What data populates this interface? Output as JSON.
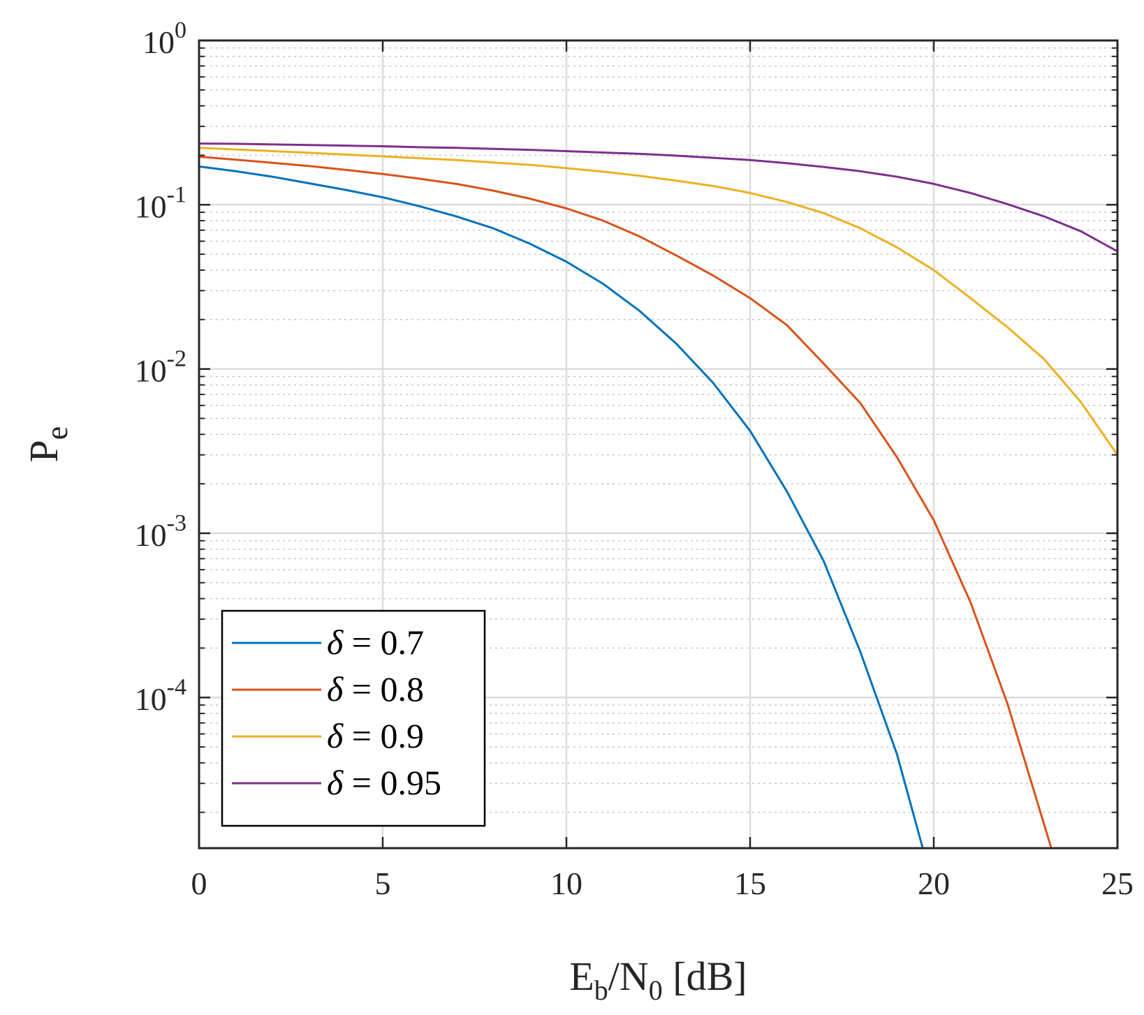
{
  "chart_data": {
    "type": "line",
    "title": "",
    "xlabel": {
      "main": "E",
      "sub1": "b",
      "mid": "/N",
      "sub2": "0",
      "tail": " [dB]"
    },
    "ylabel": {
      "main": "P",
      "sub": "e"
    },
    "xlim": [
      0,
      25
    ],
    "ylim": [
      1.21e-05,
      1
    ],
    "yscale": "log",
    "grid": true,
    "minor_grid": true,
    "legend_position": "bottom-left",
    "x_ticks": [
      "0",
      "5",
      "10",
      "15",
      "20",
      "25"
    ],
    "y_ticks": [
      {
        "base": "10",
        "exp": "0",
        "value": 1
      },
      {
        "base": "10",
        "exp": "-1",
        "value": 0.1
      },
      {
        "base": "10",
        "exp": "-2",
        "value": 0.01
      },
      {
        "base": "10",
        "exp": "-3",
        "value": 0.001
      },
      {
        "base": "10",
        "exp": "-4",
        "value": 0.0001
      }
    ],
    "series": [
      {
        "name": "δ = 0.7",
        "name_symbol": "δ",
        "name_value": " = 0.7",
        "color": "#0072BD",
        "x": [
          0,
          1,
          2,
          3,
          4,
          5,
          6,
          7,
          8,
          9,
          10,
          11,
          12,
          13,
          14,
          15,
          16,
          17,
          18,
          19,
          19.7
        ],
        "y": [
          0.171,
          0.16,
          0.148,
          0.135,
          0.123,
          0.111,
          0.098,
          0.085,
          0.072,
          0.058,
          0.045,
          0.033,
          0.0225,
          0.0142,
          0.0082,
          0.0042,
          0.0018,
          0.00068,
          0.00019,
          4.5e-05,
          1.21e-05
        ]
      },
      {
        "name": "δ = 0.8",
        "name_symbol": "δ",
        "name_value": " = 0.8",
        "color": "#D95319",
        "x": [
          0,
          1,
          2,
          3,
          4,
          5,
          6,
          7,
          8,
          9,
          10,
          11,
          12,
          13,
          14,
          15,
          16,
          17,
          18,
          19,
          20,
          21,
          22,
          23.2
        ],
        "y": [
          0.196,
          0.188,
          0.18,
          0.172,
          0.163,
          0.154,
          0.144,
          0.134,
          0.122,
          0.109,
          0.095,
          0.08,
          0.064,
          0.049,
          0.037,
          0.027,
          0.0185,
          0.0108,
          0.0062,
          0.0029,
          0.0012,
          0.00038,
          9.25e-05,
          1.21e-05
        ]
      },
      {
        "name": "δ = 0.9",
        "name_symbol": "δ",
        "name_value": " = 0.9",
        "color": "#EDB120",
        "x": [
          0,
          1,
          2,
          3,
          4,
          5,
          6,
          7,
          8,
          9,
          10,
          11,
          12,
          13,
          14,
          15,
          16,
          17,
          18,
          19,
          20,
          21,
          22,
          23,
          24,
          25
        ],
        "y": [
          0.222,
          0.217,
          0.212,
          0.207,
          0.202,
          0.197,
          0.192,
          0.187,
          0.181,
          0.175,
          0.167,
          0.159,
          0.15,
          0.14,
          0.13,
          0.118,
          0.104,
          0.089,
          0.072,
          0.055,
          0.04,
          0.027,
          0.018,
          0.0115,
          0.0063,
          0.003
        ]
      },
      {
        "name": "δ = 0.95",
        "name_symbol": "δ",
        "name_value": " = 0.95",
        "color": "#7E2F8E",
        "x": [
          0,
          1,
          2,
          3,
          4,
          5,
          6,
          7,
          8,
          9,
          10,
          11,
          12,
          13,
          14,
          15,
          16,
          17,
          18,
          19,
          20,
          21,
          22,
          23,
          24,
          25
        ],
        "y": [
          0.236,
          0.235,
          0.233,
          0.231,
          0.229,
          0.227,
          0.224,
          0.222,
          0.219,
          0.216,
          0.212,
          0.208,
          0.204,
          0.199,
          0.193,
          0.187,
          0.179,
          0.17,
          0.16,
          0.148,
          0.134,
          0.118,
          0.101,
          0.085,
          0.069,
          0.052
        ]
      }
    ]
  }
}
